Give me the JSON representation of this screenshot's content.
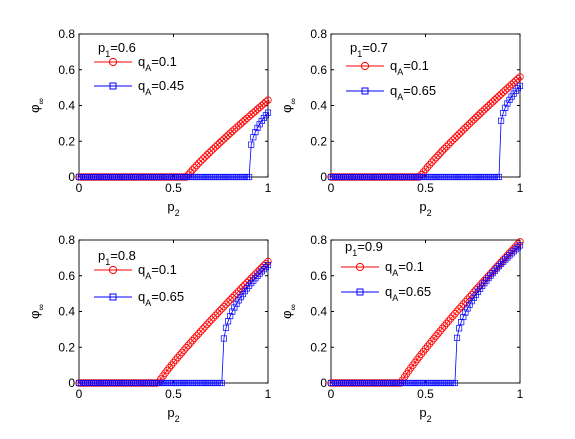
{
  "colors": {
    "series_a": "#ff0000",
    "series_b": "#0000ff",
    "axis": "#000000",
    "overlap": "#7a00aa"
  },
  "chart_data": [
    {
      "type": "line",
      "annotation": "p_1=0.6",
      "xlabel": "p_2",
      "ylabel": "φ_∞",
      "xlim": [
        0,
        1
      ],
      "ylim": [
        0,
        0.8
      ],
      "xticks": [
        "0",
        "0.5",
        "1"
      ],
      "yticks": [
        "0",
        "0.2",
        "0.4",
        "0.6",
        "0.8"
      ],
      "grid": false,
      "legend_position": "top-left",
      "series": [
        {
          "name": "q_A=0.1",
          "marker": "circle",
          "color": "#ff0000",
          "threshold": 0.57,
          "end_value": 0.43,
          "exponent": 0.9
        },
        {
          "name": "q_A=0.45",
          "marker": "square",
          "color": "#0000ff",
          "threshold": 0.905,
          "jump_value": 0.12,
          "end_value": 0.36,
          "exponent": 0.5
        }
      ]
    },
    {
      "type": "line",
      "annotation": "p_1=0.7",
      "xlabel": "p_2",
      "ylabel": "φ_∞",
      "xlim": [
        0,
        1
      ],
      "ylim": [
        0,
        0.8
      ],
      "xticks": [
        "0",
        "0.5",
        "1"
      ],
      "yticks": [
        "0",
        "0.2",
        "0.4",
        "0.6",
        "0.8"
      ],
      "grid": false,
      "legend_position": "top-left",
      "series": [
        {
          "name": "q_A=0.1",
          "marker": "circle",
          "color": "#ff0000",
          "threshold": 0.47,
          "end_value": 0.56,
          "exponent": 0.9
        },
        {
          "name": "q_A=0.65",
          "marker": "square",
          "color": "#0000ff",
          "threshold": 0.895,
          "jump_value": 0.26,
          "end_value": 0.51,
          "exponent": 0.5
        }
      ]
    },
    {
      "type": "line",
      "annotation": "p_1=0.8",
      "xlabel": "p_2",
      "ylabel": "φ_∞",
      "xlim": [
        0,
        1
      ],
      "ylim": [
        0,
        0.8
      ],
      "xticks": [
        "0",
        "0.5",
        "1"
      ],
      "yticks": [
        "0",
        "0.2",
        "0.4",
        "0.6",
        "0.8"
      ],
      "grid": false,
      "legend_position": "top-left",
      "series": [
        {
          "name": "q_A=0.1",
          "marker": "circle",
          "color": "#ff0000",
          "threshold": 0.42,
          "end_value": 0.68,
          "exponent": 0.9
        },
        {
          "name": "q_A=0.65",
          "marker": "square",
          "color": "#0000ff",
          "threshold": 0.765,
          "jump_value": 0.22,
          "end_value": 0.66,
          "exponent": 0.55
        }
      ]
    },
    {
      "type": "line",
      "annotation": "p_1=0.9",
      "xlabel": "p_2",
      "ylabel": "φ_∞",
      "xlim": [
        0,
        1
      ],
      "ylim": [
        0,
        0.8
      ],
      "xticks": [
        "0",
        "0.5",
        "1"
      ],
      "yticks": [
        "0",
        "0.2",
        "0.4",
        "0.6",
        "0.8"
      ],
      "grid": false,
      "legend_position": "top-left",
      "series": [
        {
          "name": "q_A=0.1",
          "marker": "circle",
          "color": "#ff0000",
          "threshold": 0.37,
          "end_value": 0.79,
          "exponent": 0.9
        },
        {
          "name": "q_A=0.65",
          "marker": "square",
          "color": "#0000ff",
          "threshold": 0.665,
          "jump_value": 0.23,
          "end_value": 0.77,
          "exponent": 0.6
        }
      ]
    }
  ]
}
